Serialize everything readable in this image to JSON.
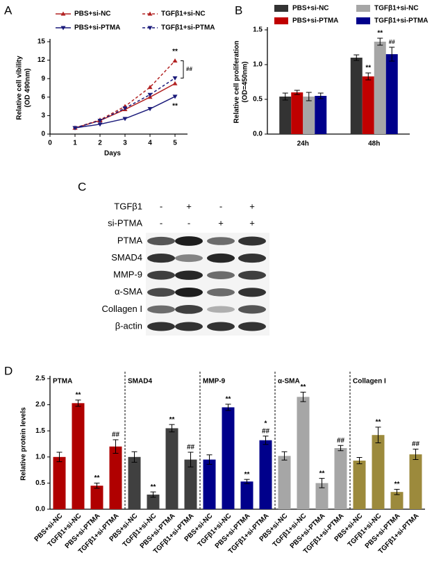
{
  "chart_data": [
    {
      "type": "line",
      "panel_label": "A",
      "y_label": [
        "Relative cell vibility",
        "(OD 490nm)"
      ],
      "x_label": "Days",
      "xlim": [
        0,
        5.5
      ],
      "xticks": [
        0,
        1,
        2,
        3,
        4,
        5
      ],
      "ylim": [
        0,
        15
      ],
      "yticks": [
        0,
        3,
        6,
        9,
        12,
        15
      ],
      "x": [
        1,
        2,
        3,
        4,
        5
      ],
      "series": [
        {
          "name": "PBS+si-NC",
          "color": "#b22222",
          "line_style": "solid",
          "marker": "triangle-up",
          "values": [
            1,
            2.2,
            4.0,
            6.0,
            8.2
          ]
        },
        {
          "name": "TGFβ1+si-NC",
          "color": "#b22222",
          "line_style": "dashed",
          "marker": "triangle-up",
          "values": [
            1,
            2.3,
            4.5,
            7.6,
            11.9
          ]
        },
        {
          "name": "PBS+si-PTMA",
          "color": "#1a1a7a",
          "line_style": "solid",
          "marker": "triangle-down",
          "values": [
            1,
            1.6,
            2.5,
            4.1,
            6.1
          ]
        },
        {
          "name": "TGFβ1+si-PTMA",
          "color": "#1a1a7a",
          "line_style": "dashed",
          "marker": "triangle-down",
          "values": [
            1,
            2.2,
            4.2,
            6.4,
            9.1
          ]
        }
      ],
      "annotations": [
        "**",
        "**",
        "##"
      ]
    },
    {
      "type": "bar",
      "panel_label": "B",
      "y_label": [
        "Relative cell proliferation",
        "(OD=450nm)"
      ],
      "categories": [
        "24h",
        "48h"
      ],
      "ylim": [
        0,
        1.5
      ],
      "yticks": [
        {
          "value": 0,
          "label": "0.0"
        },
        0.5,
        {
          "value": 1,
          "label": "1.0"
        },
        1.5
      ],
      "series": [
        {
          "name": "PBS+si-NC",
          "color": "#333333",
          "values": [
            0.54,
            1.1
          ],
          "errors": [
            0.05,
            0.04
          ],
          "annotations": [
            null,
            null
          ]
        },
        {
          "name": "PBS+si-PTMA",
          "color": "#c00000",
          "values": [
            0.6,
            0.83
          ],
          "errors": [
            0.03,
            0.05
          ],
          "annotations": [
            null,
            [
              "**"
            ]
          ]
        },
        {
          "name": "TGFβ1+si-NC",
          "color": "#a6a6a6",
          "values": [
            0.54,
            1.33
          ],
          "errors": [
            0.06,
            0.05
          ],
          "annotations": [
            null,
            [
              "**"
            ]
          ]
        },
        {
          "name": "TGFβ1+si-PTMA",
          "color": "#00008b",
          "values": [
            0.55,
            1.15
          ],
          "errors": [
            0.04,
            0.1
          ],
          "annotations": [
            null,
            [
              "##"
            ]
          ]
        }
      ]
    },
    {
      "type": "bar",
      "panel_label": "D",
      "y_label": [
        "Relative protein levels"
      ],
      "categories": [
        "PBS+si-NC",
        "TGFβ1+si-NC",
        "PBS+si-PTMA",
        "TGFβ1+si-PTMA"
      ],
      "ylim": [
        0,
        2.5
      ],
      "yticks": [
        {
          "value": 0,
          "label": "0.0"
        },
        0.5,
        {
          "value": 1,
          "label": "1.0"
        },
        1.5,
        {
          "value": 2,
          "label": "2.0"
        },
        2.5
      ],
      "panels": [
        {
          "name": "PTMA",
          "color": "#b00000",
          "values": [
            1.0,
            2.03,
            0.45,
            1.2
          ],
          "errors": [
            0.09,
            0.06,
            0.05,
            0.13
          ],
          "annotations": [
            null,
            [
              "**"
            ],
            [
              "**"
            ],
            [
              "##"
            ]
          ]
        },
        {
          "name": "SMAD4",
          "color": "#404040",
          "values": [
            1.0,
            0.28,
            1.55,
            0.95
          ],
          "errors": [
            0.1,
            0.05,
            0.07,
            0.14
          ],
          "annotations": [
            null,
            [
              "**"
            ],
            [
              "**"
            ],
            [
              "##"
            ]
          ]
        },
        {
          "name": "MMP-9",
          "color": "#00008b",
          "values": [
            0.95,
            1.95,
            0.53,
            1.32
          ],
          "errors": [
            0.09,
            0.06,
            0.04,
            0.08
          ],
          "annotations": [
            null,
            [
              "**"
            ],
            [
              "**"
            ],
            [
              "##",
              "*"
            ]
          ]
        },
        {
          "name": "α-SMA",
          "color": "#a6a6a6",
          "values": [
            1.02,
            2.15,
            0.5,
            1.17
          ],
          "errors": [
            0.08,
            0.09,
            0.09,
            0.05
          ],
          "annotations": [
            null,
            [
              "**"
            ],
            [
              "**"
            ],
            [
              "##"
            ]
          ]
        },
        {
          "name": "Collagen I",
          "color": "#9c8a3c",
          "values": [
            0.93,
            1.42,
            0.33,
            1.05
          ],
          "errors": [
            0.06,
            0.15,
            0.05,
            0.1
          ],
          "annotations": [
            null,
            [
              "**"
            ],
            [
              "**"
            ],
            [
              "##"
            ]
          ]
        }
      ]
    }
  ],
  "blot": {
    "panel_label": "C",
    "conditions": [
      {
        "name": "TGFβ1",
        "signs": [
          "-",
          "+",
          "-",
          "+"
        ]
      },
      {
        "name": "si-PTMA",
        "signs": [
          "-",
          "-",
          "+",
          "+"
        ]
      }
    ],
    "rows": [
      "PTMA",
      "SMAD4",
      "MMP-9",
      "α-SMA",
      "Collagen I",
      "β-actin"
    ]
  }
}
